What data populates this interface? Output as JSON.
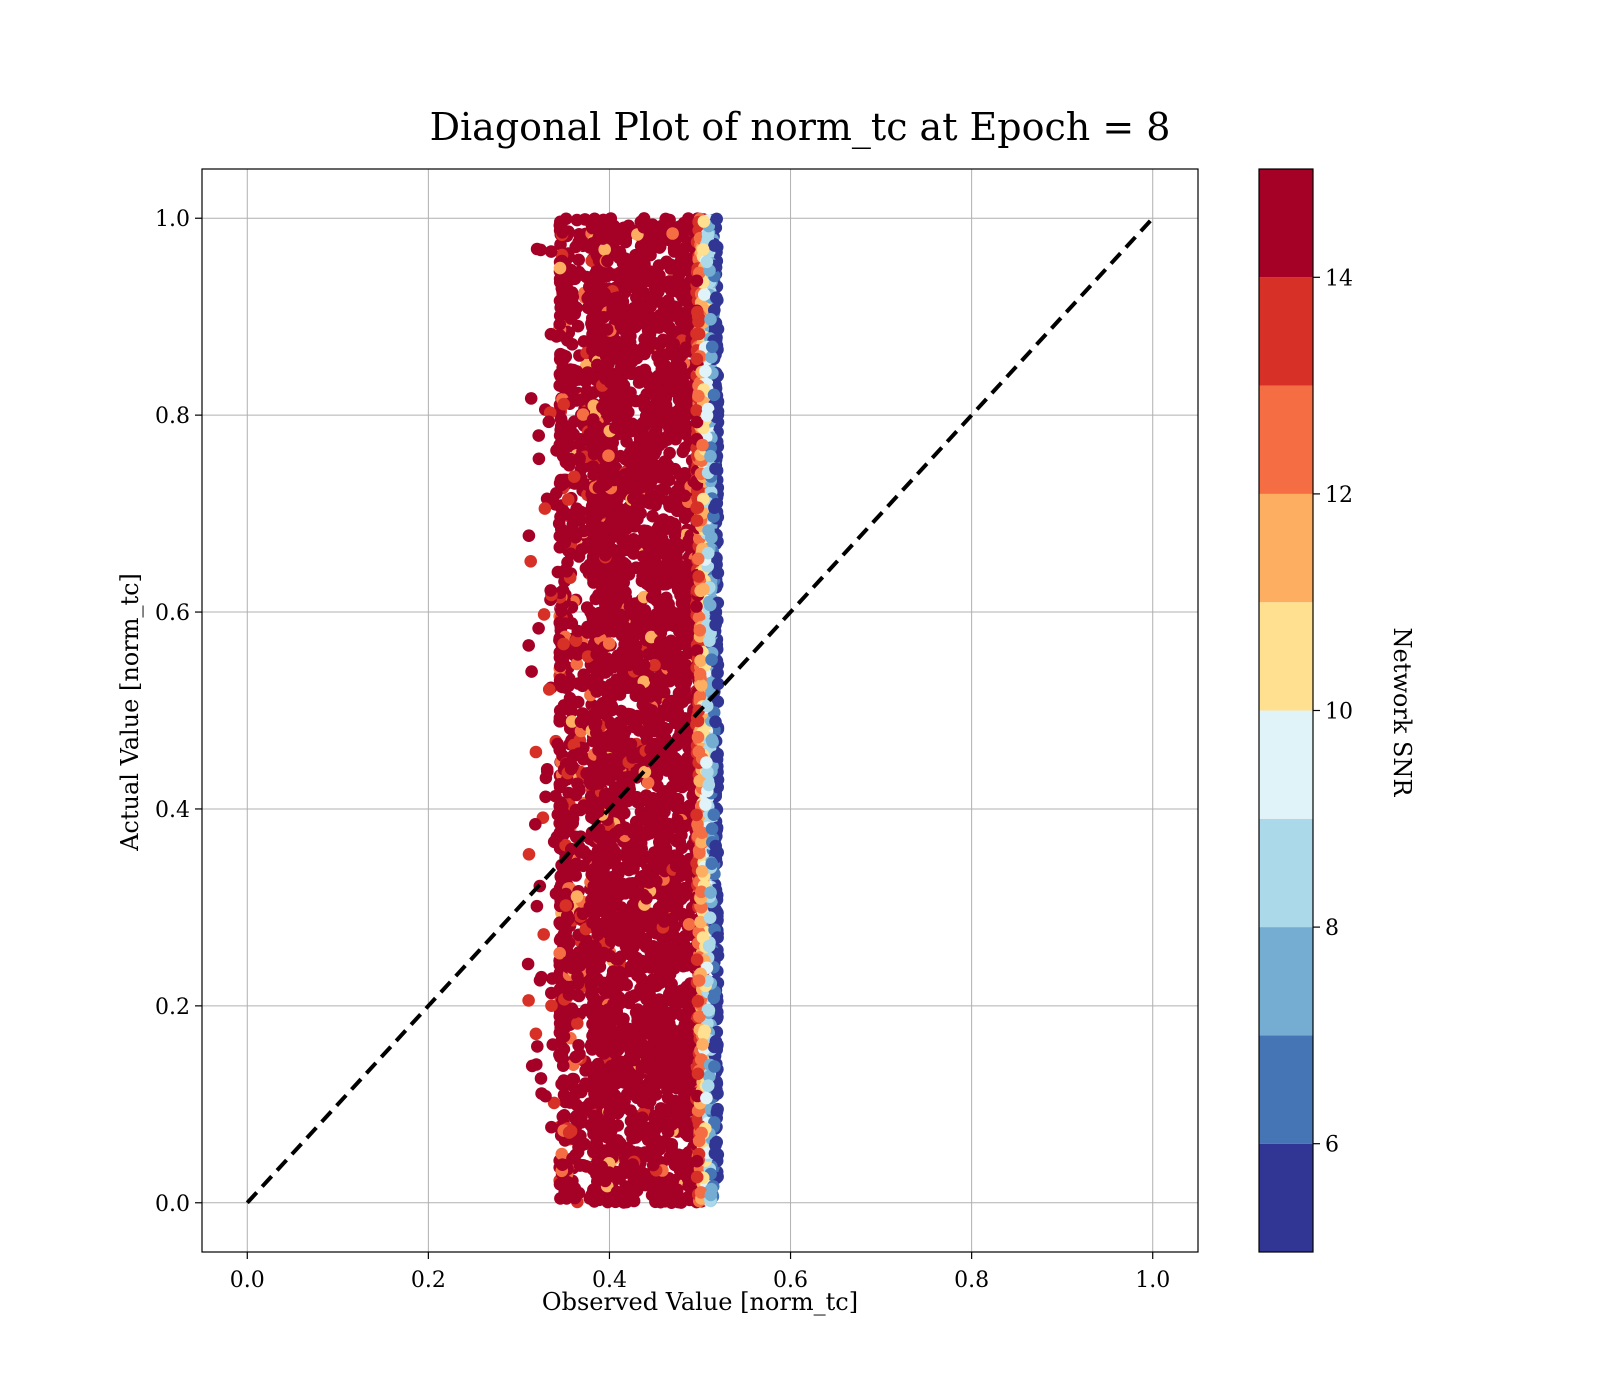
{
  "chart_data": {
    "type": "scatter",
    "title": "Diagonal Plot of norm_tc at Epoch = 8",
    "xlabel": "Observed Value [norm_tc]",
    "ylabel": "Actual Value [norm_tc]",
    "xlim": [
      -0.05,
      1.05
    ],
    "ylim": [
      -0.05,
      1.05
    ],
    "xticks": [
      "0.0",
      "0.2",
      "0.4",
      "0.6",
      "0.8",
      "1.0"
    ],
    "yticks": [
      "0.0",
      "0.2",
      "0.4",
      "0.6",
      "0.8",
      "1.0"
    ],
    "grid": true,
    "diagonal_line": {
      "from": [
        0.0,
        0.0
      ],
      "to": [
        1.0,
        1.0
      ],
      "style": "dashed",
      "color": "#000000"
    },
    "points_summary": {
      "x_core_range": [
        0.39,
        0.51
      ],
      "x_full_range": [
        0.31,
        0.52
      ],
      "y_range": [
        0.0,
        1.0
      ],
      "description": "dense vertical band"
    },
    "colorbar": {
      "label": "Network SNR",
      "range": [
        5,
        15
      ],
      "boundaries": [
        5,
        6,
        7,
        8,
        9,
        10,
        11,
        12,
        13,
        14,
        15
      ],
      "ticks": [
        "6",
        "8",
        "10",
        "12",
        "14"
      ],
      "colors": [
        "#313695",
        "#4575b4",
        "#74add1",
        "#abd9e9",
        "#e0f3f8",
        "#fee090",
        "#fdae61",
        "#f46d43",
        "#d73027",
        "#a50026"
      ]
    }
  }
}
